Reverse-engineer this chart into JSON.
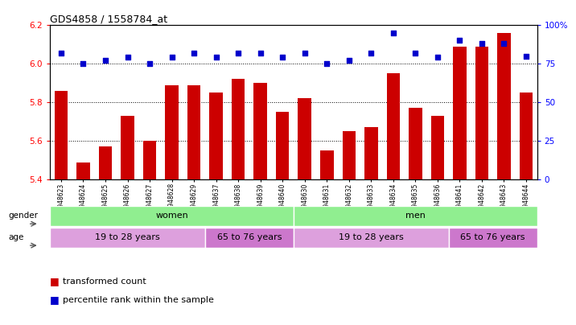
{
  "title": "GDS4858 / 1558784_at",
  "samples": [
    "GSM948623",
    "GSM948624",
    "GSM948625",
    "GSM948626",
    "GSM948627",
    "GSM948628",
    "GSM948629",
    "GSM948637",
    "GSM948638",
    "GSM948639",
    "GSM948640",
    "GSM948630",
    "GSM948631",
    "GSM948632",
    "GSM948633",
    "GSM948634",
    "GSM948635",
    "GSM948636",
    "GSM948641",
    "GSM948642",
    "GSM948643",
    "GSM948644"
  ],
  "bar_values": [
    5.86,
    5.49,
    5.57,
    5.73,
    5.6,
    5.89,
    5.89,
    5.85,
    5.92,
    5.9,
    5.75,
    5.82,
    5.55,
    5.65,
    5.67,
    5.95,
    5.77,
    5.73,
    6.09,
    6.09,
    6.16,
    5.85
  ],
  "percentile_pct": [
    82,
    75,
    77,
    79,
    75,
    79,
    82,
    79,
    82,
    82,
    79,
    82,
    75,
    77,
    82,
    95,
    82,
    79,
    90,
    88,
    88,
    80
  ],
  "ylim_left": [
    5.4,
    6.2
  ],
  "ylim_right": [
    0,
    100
  ],
  "yticks_left": [
    5.4,
    5.6,
    5.8,
    6.0,
    6.2
  ],
  "yticks_right": [
    0,
    25,
    50,
    75,
    100
  ],
  "ytick_labels_right": [
    "0",
    "25",
    "50",
    "75",
    "100%"
  ],
  "bar_color": "#CC0000",
  "dot_color": "#0000CC",
  "grid_yticks": [
    5.6,
    5.8,
    6.0
  ],
  "gender_groups": [
    {
      "label": "women",
      "start": 0,
      "end": 11,
      "color": "#90EE90"
    },
    {
      "label": "men",
      "start": 11,
      "end": 22,
      "color": "#90EE90"
    }
  ],
  "age_groups": [
    {
      "label": "19 to 28 years",
      "start": 0,
      "end": 7,
      "color": "#DDA0DD"
    },
    {
      "label": "65 to 76 years",
      "start": 7,
      "end": 11,
      "color": "#CC77CC"
    },
    {
      "label": "19 to 28 years",
      "start": 11,
      "end": 18,
      "color": "#DDA0DD"
    },
    {
      "label": "65 to 76 years",
      "start": 18,
      "end": 22,
      "color": "#CC77CC"
    }
  ],
  "legend_items": [
    {
      "label": "transformed count",
      "color": "#CC0000"
    },
    {
      "label": "percentile rank within the sample",
      "color": "#0000CC"
    }
  ],
  "background_color": "#FFFFFF",
  "bar_width": 0.6
}
